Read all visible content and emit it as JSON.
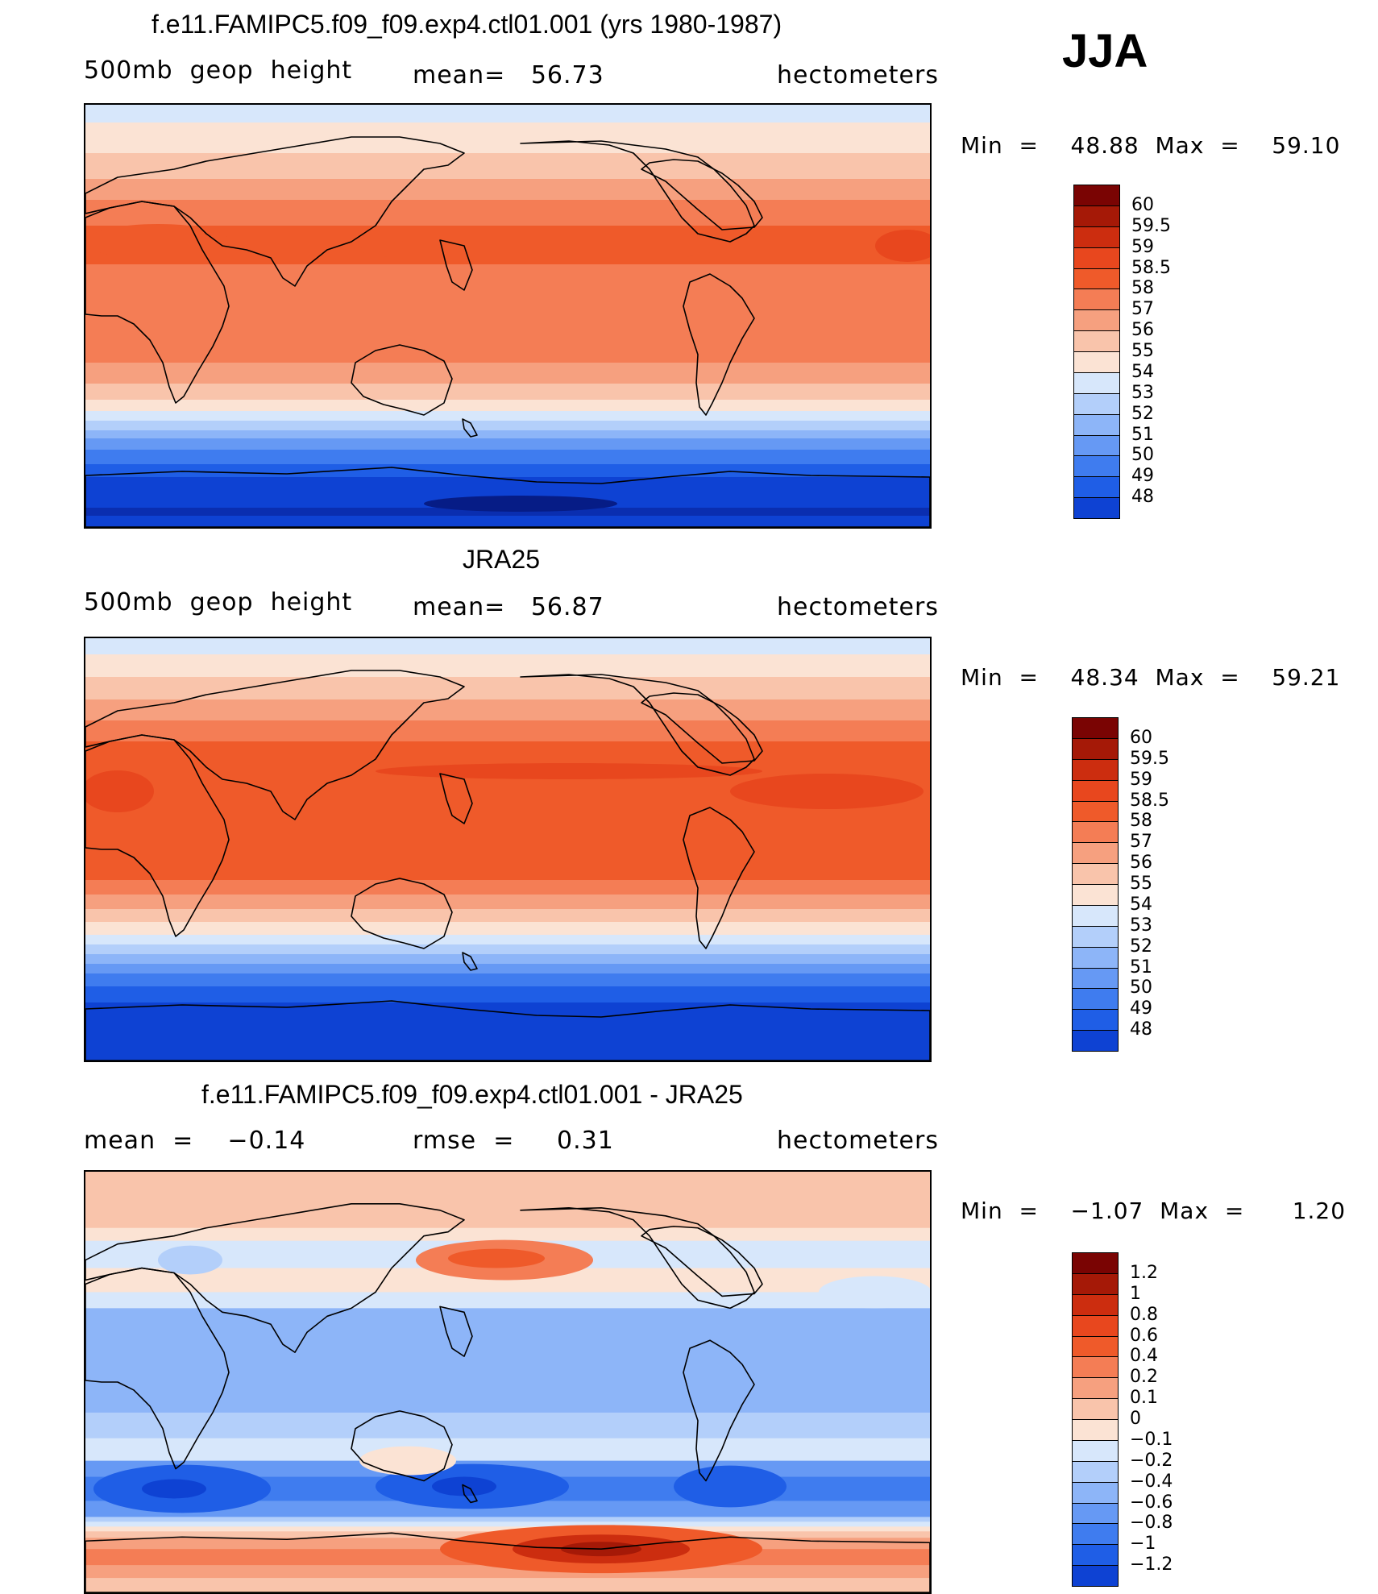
{
  "season": "JJA",
  "colors": {
    "pos": [
      "#fbe3d4",
      "#f9c4ab",
      "#f6a07f",
      "#f47d55",
      "#ef5a2a",
      "#e8471e",
      "#cc2d0f",
      "#a51907",
      "#7a0403"
    ],
    "neg": [
      "#d7e7fb",
      "#b3cffa",
      "#8db5f8",
      "#6699f4",
      "#3f7cef",
      "#1f5ee6",
      "#0e42d3",
      "#0a2eb0",
      "#061c86"
    ]
  },
  "panels": [
    {
      "title": "f.e11.FAMIPC5.f09_f09.exp4.ctl01.001 (yrs 1980-1987)",
      "left_label": "500mb  geop  height",
      "center_label": "mean=   56.73",
      "right_label": "hectometers",
      "min_label": "Min  =    48.88  Max  =    59.10",
      "levels": [
        "60",
        "59.5",
        "59",
        "58.5",
        "58",
        "57",
        "56",
        "55",
        "54",
        "53",
        "52",
        "51",
        "50",
        "49",
        "48"
      ]
    },
    {
      "title": "JRA25",
      "left_label": "500mb  geop  height",
      "center_label": "mean=   56.87",
      "right_label": "hectometers",
      "min_label": "Min  =    48.34  Max  =    59.21",
      "levels": [
        "60",
        "59.5",
        "59",
        "58.5",
        "58",
        "57",
        "56",
        "55",
        "54",
        "53",
        "52",
        "51",
        "50",
        "49",
        "48"
      ]
    },
    {
      "title": "f.e11.FAMIPC5.f09_f09.exp4.ctl01.001 - JRA25",
      "left_label": "mean  =    −0.14",
      "center_label": "rmse  =     0.31",
      "right_label": "hectometers",
      "min_label": "Min  =    −1.07  Max  =      1.20",
      "levels": [
        "1.2",
        "1",
        "0.8",
        "0.6",
        "0.4",
        "0.2",
        "0.1",
        "0",
        "−0.1",
        "−0.2",
        "−0.4",
        "−0.6",
        "−0.8",
        "−1",
        "−1.2"
      ]
    }
  ]
}
